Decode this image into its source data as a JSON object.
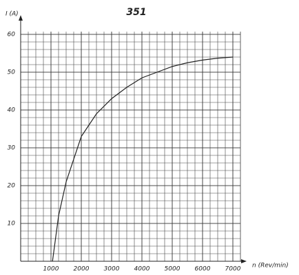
{
  "chart_data": {
    "type": "line",
    "title": "351",
    "y_label": "I (A)",
    "x_label": "n (Rev/min)",
    "x": [
      1050,
      1250,
      1500,
      2000,
      2500,
      3000,
      3500,
      4000,
      4500,
      5000,
      5500,
      6000,
      6500,
      7000
    ],
    "series": [
      {
        "name": "I",
        "color": "#222222",
        "values": [
          0,
          12,
          21,
          33,
          39,
          43,
          46,
          48.5,
          50,
          51.5,
          52.5,
          53.2,
          53.7,
          54
        ]
      }
    ],
    "xlim": [
      0,
      7250
    ],
    "ylim": [
      0,
      60
    ],
    "xticks": [
      1000,
      2000,
      3000,
      4000,
      5000,
      6000,
      7000
    ],
    "yticks": [
      10,
      20,
      30,
      40,
      50,
      60
    ],
    "grid": true
  }
}
